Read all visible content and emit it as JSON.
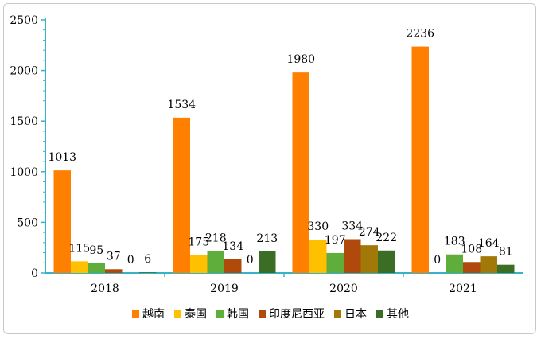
{
  "chart_data": {
    "type": "bar",
    "title": "",
    "xlabel": "",
    "ylabel": "",
    "ylim": [
      0,
      2500
    ],
    "yticks": [
      0,
      500,
      1000,
      1500,
      2000,
      2500
    ],
    "grid": false,
    "legend_position": "bottom",
    "categories": [
      "2018",
      "2019",
      "2020",
      "2021"
    ],
    "series": [
      {
        "name": "越南",
        "color": "#ff7f00",
        "values": [
          1013,
          1534,
          1980,
          2236
        ]
      },
      {
        "name": "泰国",
        "color": "#ffc000",
        "values": [
          115,
          175,
          330,
          0
        ]
      },
      {
        "name": "韩国",
        "color": "#5fad3a",
        "values": [
          95,
          218,
          197,
          183
        ]
      },
      {
        "name": "印度尼西亚",
        "color": "#b04a0c",
        "values": [
          37,
          134,
          334,
          108
        ]
      },
      {
        "name": "日本",
        "color": "#a27808",
        "values": [
          0,
          0,
          274,
          164
        ]
      },
      {
        "name": "其他",
        "color": "#3b6e24",
        "values": [
          6,
          213,
          222,
          81
        ]
      }
    ],
    "value_labels": [
      [
        "1013",
        "1534",
        "1980",
        "2236"
      ],
      [
        "115",
        "175",
        "330",
        "0"
      ],
      [
        "95",
        "218",
        "197",
        "183"
      ],
      [
        "37",
        "134",
        "334",
        "108"
      ],
      [
        "0",
        "0",
        "274",
        "164"
      ],
      [
        "6",
        "213",
        "222",
        "81"
      ]
    ]
  }
}
